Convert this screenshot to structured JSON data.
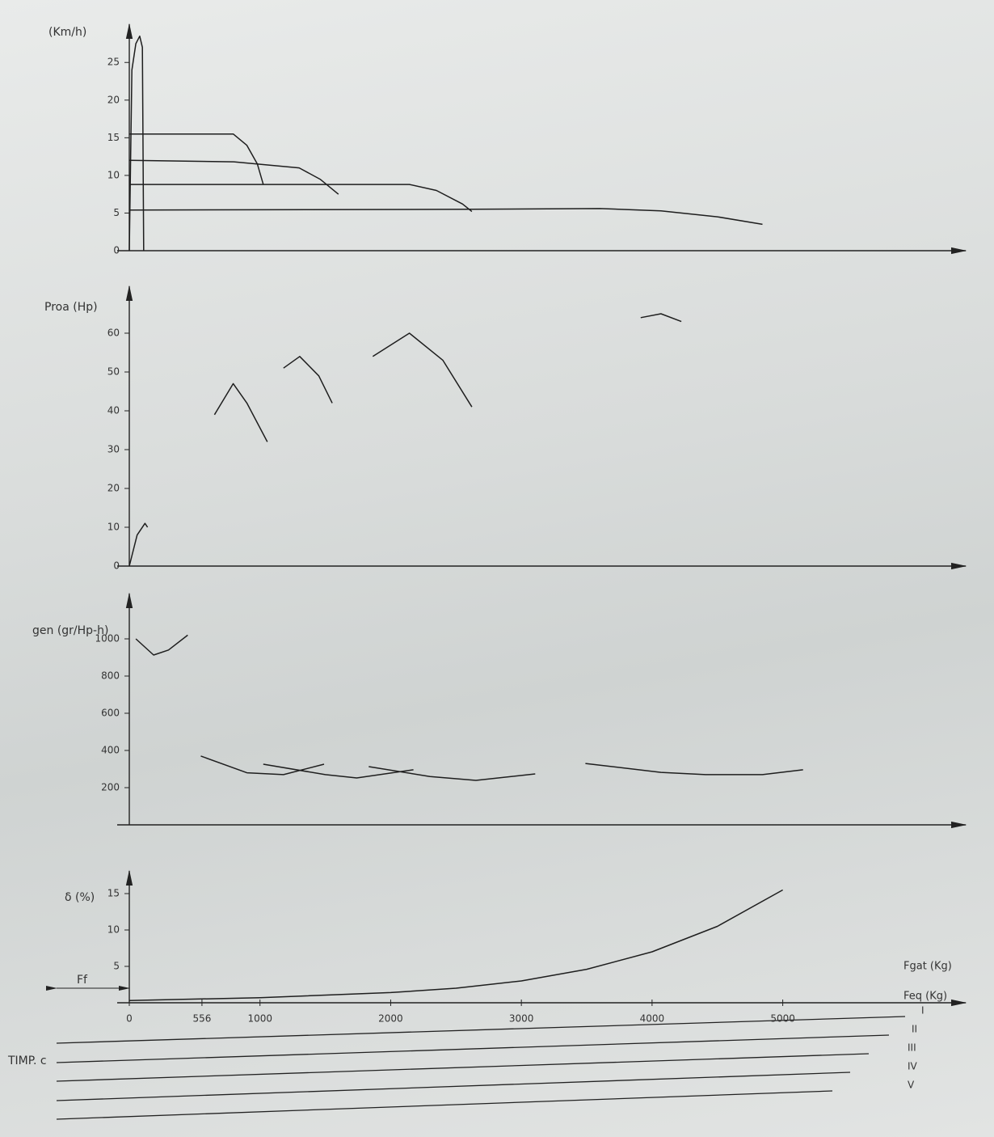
{
  "chart_data": [
    {
      "type": "line",
      "y_label": "(Km/h)",
      "xlim": [
        0,
        6400
      ],
      "ylim": [
        0,
        29
      ],
      "yticks": [
        0,
        5,
        10,
        15,
        20,
        25
      ],
      "series": [
        {
          "color": "#1e1e1e",
          "x": [
            0,
            20,
            50,
            80,
            100,
            110
          ],
          "values": [
            0,
            24,
            27.5,
            28.5,
            27,
            0
          ]
        },
        {
          "color": "#1e1e1e",
          "x": [
            0,
            795,
            900,
            980,
            1025
          ],
          "values": [
            15.5,
            15.5,
            14,
            11.5,
            8.8
          ]
        },
        {
          "color": "#1e1e1e",
          "x": [
            0,
            800,
            1300,
            1460,
            1600
          ],
          "values": [
            12,
            11.8,
            11,
            9.5,
            7.5
          ]
        },
        {
          "color": "#1e1e1e",
          "x": [
            0,
            2143,
            2350,
            2550,
            2621
          ],
          "values": [
            8.8,
            8.8,
            8,
            6.2,
            5.2
          ]
        },
        {
          "color": "#1e1e1e",
          "x": [
            0,
            2621,
            3600,
            4068,
            4500,
            4845
          ],
          "values": [
            5.4,
            5.5,
            5.6,
            5.3,
            4.5,
            3.5
          ]
        }
      ]
    },
    {
      "type": "line",
      "y_label": "Proa (Hp)",
      "xlim": [
        0,
        6400
      ],
      "ylim": [
        0,
        70
      ],
      "yticks": [
        0,
        10,
        20,
        30,
        40,
        50,
        60
      ],
      "series": [
        {
          "color": "#1e1e1e",
          "x": [
            0,
            60,
            120,
            140
          ],
          "values": [
            0,
            8,
            11,
            10
          ]
        },
        {
          "color": "#1e1e1e",
          "x": [
            652,
            795,
            900,
            1056
          ],
          "values": [
            39,
            47,
            42,
            32
          ]
        },
        {
          "color": "#1e1e1e",
          "x": [
            1180,
            1304,
            1450,
            1553
          ],
          "values": [
            51,
            54,
            49,
            42
          ]
        },
        {
          "color": "#1e1e1e",
          "x": [
            1863,
            2143,
            2400,
            2621
          ],
          "values": [
            54,
            60,
            53,
            41
          ]
        },
        {
          "color": "#1e1e1e",
          "x": [
            3913,
            4068,
            4224
          ],
          "values": [
            64,
            65,
            63
          ]
        }
      ]
    },
    {
      "type": "line",
      "y_label": "gen (gr/Hp-h)",
      "xlim": [
        0,
        6400
      ],
      "ylim": [
        0,
        1200
      ],
      "yticks": [
        200,
        400,
        600,
        800,
        1000
      ],
      "series": [
        {
          "color": "#1e1e1e",
          "x": [
            50,
            186,
            300,
            447
          ],
          "values": [
            1000,
            913,
            940,
            1020
          ]
        },
        {
          "color": "#1e1e1e",
          "x": [
            547,
            900,
            1180,
            1490
          ],
          "values": [
            370,
            280,
            270,
            326
          ]
        },
        {
          "color": "#1e1e1e",
          "x": [
            1025,
            1500,
            1740,
            2174
          ],
          "values": [
            326,
            270,
            252,
            296
          ]
        },
        {
          "color": "#1e1e1e",
          "x": [
            1832,
            2300,
            2652,
            3106
          ],
          "values": [
            313,
            260,
            239,
            274
          ]
        },
        {
          "color": "#1e1e1e",
          "x": [
            3490,
            4068,
            4410,
            4845,
            5155
          ],
          "values": [
            330,
            282,
            270,
            270,
            296
          ]
        }
      ]
    },
    {
      "type": "line",
      "y_label": "δ (%)",
      "x_label": "Feq (Kg)",
      "x2_label": "Fgat (Kg)",
      "annotations": [
        "Ff"
      ],
      "xlim": [
        0,
        6400
      ],
      "ylim": [
        0,
        17
      ],
      "yticks": [
        5,
        10,
        15
      ],
      "xticks": [
        0,
        556,
        1000,
        2000,
        3000,
        4000,
        5000
      ],
      "series": [
        {
          "color": "#1e1e1e",
          "x": [
            0,
            1000,
            2000,
            2500,
            3000,
            3500,
            4000,
            4500,
            5000
          ],
          "values": [
            0.3,
            0.7,
            1.4,
            2,
            3,
            4.6,
            7,
            10.5,
            15.5
          ]
        }
      ]
    }
  ],
  "gear_scale": {
    "label": "TIMP. c",
    "gears": [
      "I",
      "II",
      "III",
      "IV",
      "V"
    ]
  }
}
